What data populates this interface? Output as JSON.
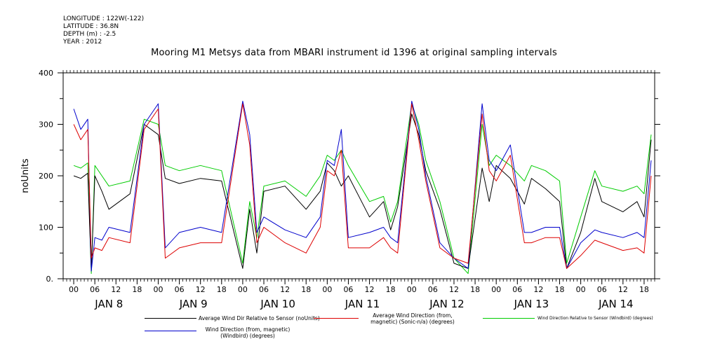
{
  "header": {
    "meta_lines": [
      "LONGITUDE : 122W(-122)",
      "LATITUDE : 36.8N",
      "DEPTH (m) : -2.5",
      "YEAR : 2012"
    ],
    "title": "Mooring M1 Metsys data from MBARI instrument id 1396 at original sampling intervals"
  },
  "chart_data": {
    "type": "line",
    "title": "Mooring M1 Metsys data from MBARI instrument id 1396 at original sampling intervals",
    "ylabel": "noUnits",
    "xlabel": "",
    "ylim": [
      0,
      400
    ],
    "y_ticks": [
      0,
      100,
      200,
      300,
      400
    ],
    "y_tick_labels": [
      "0.",
      "100",
      "200",
      "300",
      "400"
    ],
    "xlim_hours": [
      -3,
      165
    ],
    "x_hour_ticks": [
      0,
      6,
      12,
      18,
      24,
      30,
      36,
      42,
      48,
      54,
      60,
      66,
      72,
      78,
      84,
      90,
      96,
      102,
      108,
      114,
      120,
      126,
      132,
      138,
      144,
      150,
      156,
      162
    ],
    "x_hour_tick_labels": [
      "00",
      "06",
      "12",
      "18",
      "00",
      "06",
      "12",
      "18",
      "00",
      "06",
      "12",
      "18",
      "00",
      "06",
      "12",
      "18",
      "00",
      "06",
      "12",
      "18",
      "00",
      "06",
      "12",
      "18",
      "00",
      "06",
      "12",
      "18"
    ],
    "x_day_labels": [
      "JAN  8",
      "JAN  9",
      "JAN 10",
      "JAN 11",
      "JAN 12",
      "JAN 13",
      "JAN 14"
    ],
    "grid": false,
    "legend_position": "bottom",
    "x_hours": [
      0,
      2,
      4,
      5,
      6,
      8,
      10,
      16,
      20,
      24,
      26,
      30,
      36,
      42,
      48,
      50,
      52,
      54,
      60,
      66,
      70,
      72,
      74,
      76,
      78,
      84,
      88,
      90,
      92,
      96,
      98,
      100,
      104,
      108,
      112,
      116,
      118,
      120,
      124,
      128,
      130,
      134,
      138,
      140,
      144,
      148,
      150,
      156,
      160,
      162,
      164
    ],
    "series": [
      {
        "name": "Average Wind Dir Relative to Sensor (noUnits)",
        "color": "#000000",
        "values": [
          200,
          195,
          205,
          15,
          200,
          170,
          135,
          165,
          300,
          280,
          195,
          185,
          195,
          190,
          20,
          135,
          50,
          170,
          180,
          135,
          170,
          225,
          210,
          180,
          200,
          120,
          150,
          95,
          140,
          320,
          280,
          210,
          135,
          30,
          20,
          215,
          150,
          220,
          195,
          145,
          195,
          175,
          150,
          20,
          90,
          195,
          150,
          130,
          150,
          120,
          270
        ]
      },
      {
        "name": "Average Wind Direction (from, magnetic) (Sonic-n/a) (degrees)",
        "color": "#dd0000",
        "values": [
          300,
          270,
          290,
          40,
          60,
          55,
          80,
          70,
          290,
          330,
          40,
          60,
          70,
          70,
          340,
          260,
          70,
          100,
          70,
          50,
          100,
          210,
          200,
          250,
          60,
          60,
          80,
          60,
          50,
          340,
          270,
          190,
          60,
          40,
          30,
          320,
          210,
          190,
          240,
          70,
          70,
          80,
          80,
          20,
          45,
          75,
          70,
          55,
          60,
          50,
          200
        ]
      },
      {
        "name": "Wind Direction Relative to Sensor (Windbird) (degrees)",
        "color": "#00cc00",
        "values": [
          220,
          215,
          225,
          10,
          220,
          200,
          180,
          190,
          310,
          300,
          220,
          210,
          220,
          210,
          30,
          150,
          80,
          180,
          190,
          160,
          200,
          240,
          230,
          250,
          220,
          150,
          160,
          110,
          150,
          340,
          300,
          230,
          150,
          40,
          10,
          300,
          220,
          240,
          220,
          190,
          220,
          210,
          190,
          30,
          120,
          210,
          180,
          170,
          180,
          165,
          280
        ]
      },
      {
        "name": "Wind Direction (from, magnetic) (Windbird) (degrees)",
        "color": "#0000cc",
        "values": [
          330,
          290,
          310,
          15,
          80,
          75,
          100,
          90,
          300,
          340,
          60,
          90,
          100,
          90,
          345,
          280,
          90,
          120,
          95,
          80,
          120,
          230,
          220,
          290,
          80,
          90,
          100,
          80,
          70,
          345,
          290,
          200,
          70,
          40,
          20,
          340,
          230,
          210,
          260,
          90,
          90,
          100,
          100,
          20,
          70,
          95,
          90,
          80,
          90,
          80,
          230
        ]
      }
    ]
  }
}
